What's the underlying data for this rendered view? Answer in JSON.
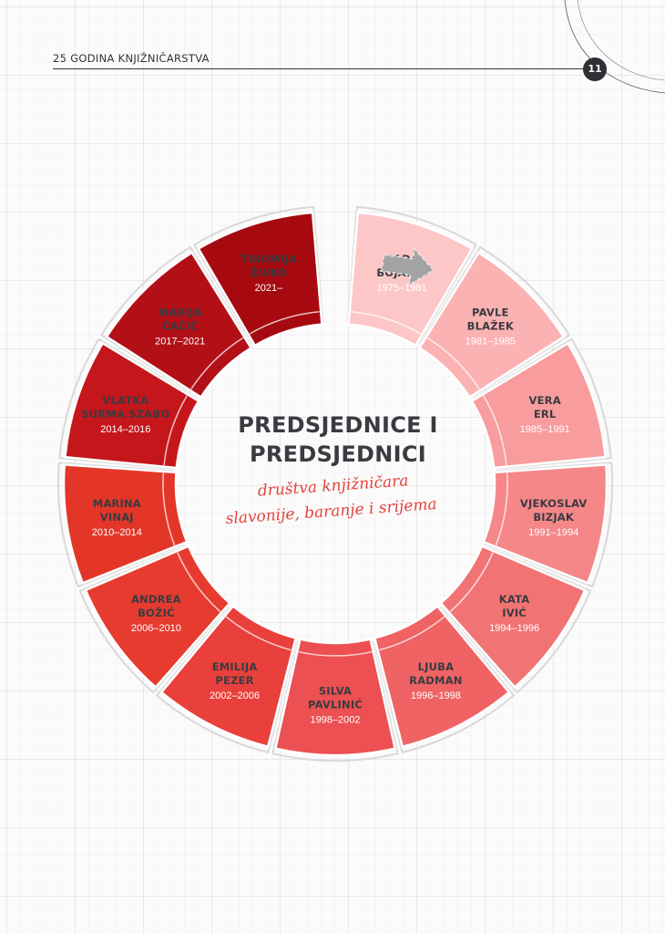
{
  "header": {
    "title": "25 GODINA KNJIŽNIČARSTVA",
    "page_number": "11"
  },
  "center": {
    "title_line1": "PREDSJEDNICE I",
    "title_line2": "PREDSJEDNICI",
    "subtitle_line1": "društva knjižničara",
    "subtitle_line2": "slavonije, baranje i srijema"
  },
  "colors": {
    "title": "#3a3b40",
    "subtitle": "#e3423c",
    "arrow": "#a3a3a3"
  },
  "presidents": [
    {
      "name_lines": [
        "NADA",
        "BOJANIĆ"
      ],
      "years": "1975–1981",
      "color": "#fdc7c8",
      "text_color": "#3a3b40",
      "year_color": "#ffffff"
    },
    {
      "name_lines": [
        "PAVLE",
        "BLAŽEK"
      ],
      "years": "1981–1985",
      "color": "#fbb2b3",
      "text_color": "#3a3b40",
      "year_color": "#ffffff"
    },
    {
      "name_lines": [
        "VERA",
        "ERL"
      ],
      "years": "1985–1991",
      "color": "#f89c9e",
      "text_color": "#3a3b40",
      "year_color": "#ffffff"
    },
    {
      "name_lines": [
        "VJEKOSLAV",
        "BIZJAK"
      ],
      "years": "1991–1994",
      "color": "#f58789",
      "text_color": "#3a3b40",
      "year_color": "#ffffff"
    },
    {
      "name_lines": [
        "KATA",
        "IVIĆ"
      ],
      "years": "1994–1996",
      "color": "#f27374",
      "text_color": "#3a3b40",
      "year_color": "#ffffff"
    },
    {
      "name_lines": [
        "LJUBA",
        "RADMAN"
      ],
      "years": "1996–1998",
      "color": "#ef6364",
      "text_color": "#3a3b40",
      "year_color": "#ffffff"
    },
    {
      "name_lines": [
        "SILVA",
        "PAVLINIĆ"
      ],
      "years": "1998–2002",
      "color": "#ec5052",
      "text_color": "#3a3b40",
      "year_color": "#ffffff"
    },
    {
      "name_lines": [
        "EMILIJA",
        "PEZER"
      ],
      "years": "2002–2006",
      "color": "#e9403c",
      "text_color": "#3a3b40",
      "year_color": "#ffffff"
    },
    {
      "name_lines": [
        "ANDREA",
        "BOŽIĆ"
      ],
      "years": "2006–2010",
      "color": "#e73b2f",
      "text_color": "#3a3b40",
      "year_color": "#ffffff"
    },
    {
      "name_lines": [
        "MARINA",
        "VINAJ"
      ],
      "years": "2010–2014",
      "color": "#e33628",
      "text_color": "#3a3b40",
      "year_color": "#ffffff"
    },
    {
      "name_lines": [
        "VLATKA",
        "SURMA SZABO"
      ],
      "years": "2014–2016",
      "color": "#c5161c",
      "text_color": "#3a3b40",
      "year_color": "#ffffff"
    },
    {
      "name_lines": [
        "MARIJA",
        "ĆAĆIĆ"
      ],
      "years": "2017–2021",
      "color": "#b30f17",
      "text_color": "#3a3b40",
      "year_color": "#ffffff"
    },
    {
      "name_lines": [
        "TIHOMIJA",
        "ŽIVKO"
      ],
      "years": "2021–",
      "color": "#a60a10",
      "text_color": "#3a3b40",
      "year_color": "#ffffff"
    }
  ]
}
